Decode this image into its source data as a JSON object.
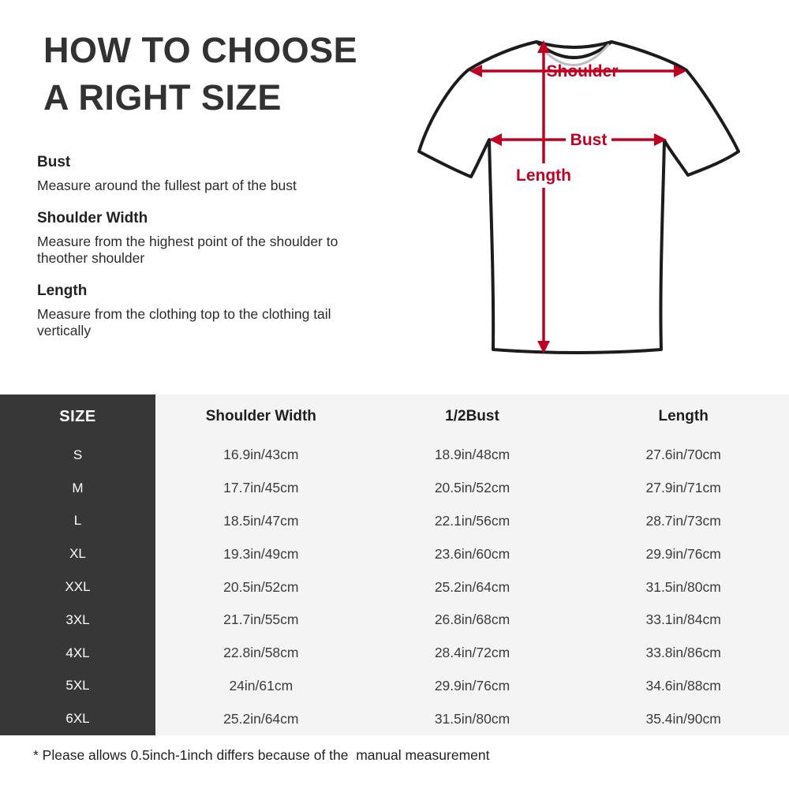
{
  "title": {
    "line1": "HOW TO CHOOSE",
    "line2": "A RIGHT SIZE"
  },
  "instructions": [
    {
      "heading": "Bust",
      "description": "Measure around the fullest part of the bust"
    },
    {
      "heading": "Shoulder Width",
      "description": "Measure from the highest point of the shoulder to theother shoulder"
    },
    {
      "heading": "Length",
      "description": "Measure from the clothing top to the clothing tail vertically"
    }
  ],
  "diagram": {
    "shoulder_label": "Shoulder",
    "bust_label": "Bust",
    "length_label": "Length",
    "arrow_color": "#c00022"
  },
  "table": {
    "headers": {
      "size": "SIZE",
      "shoulder": "Shoulder Width",
      "bust": "1/2Bust",
      "length": "Length"
    },
    "rows": [
      {
        "size": "S",
        "shoulder": "16.9in/43cm",
        "bust": "18.9in/48cm",
        "length": "27.6in/70cm"
      },
      {
        "size": "M",
        "shoulder": "17.7in/45cm",
        "bust": "20.5in/52cm",
        "length": "27.9in/71cm"
      },
      {
        "size": "L",
        "shoulder": "18.5in/47cm",
        "bust": "22.1in/56cm",
        "length": "28.7in/73cm"
      },
      {
        "size": "XL",
        "shoulder": "19.3in/49cm",
        "bust": "23.6in/60cm",
        "length": "29.9in/76cm"
      },
      {
        "size": "XXL",
        "shoulder": "20.5in/52cm",
        "bust": "25.2in/64cm",
        "length": "31.5in/80cm"
      },
      {
        "size": "3XL",
        "shoulder": "21.7in/55cm",
        "bust": "26.8in/68cm",
        "length": "33.1in/84cm"
      },
      {
        "size": "4XL",
        "shoulder": "22.8in/58cm",
        "bust": "28.4in/72cm",
        "length": "33.8in/86cm"
      },
      {
        "size": "5XL",
        "shoulder": "24in/61cm",
        "bust": "29.9in/76cm",
        "length": "34.6in/88cm"
      },
      {
        "size": "6XL",
        "shoulder": "25.2in/64cm",
        "bust": "31.5in/80cm",
        "length": "35.4in/90cm"
      }
    ]
  },
  "footnote": "* Please allows 0.5inch-1inch differs because of the  manual measurement",
  "colors": {
    "accent_red": "#c00022",
    "table_dark": "#373737",
    "table_light": "#f4f4f4",
    "text_dark": "#323232"
  },
  "chart_data": {
    "type": "table",
    "title": "HOW TO CHOOSE A RIGHT SIZE",
    "columns": [
      "SIZE",
      "Shoulder Width",
      "1/2Bust",
      "Length"
    ],
    "rows": [
      [
        "S",
        "16.9in/43cm",
        "18.9in/48cm",
        "27.6in/70cm"
      ],
      [
        "M",
        "17.7in/45cm",
        "20.5in/52cm",
        "27.9in/71cm"
      ],
      [
        "L",
        "18.5in/47cm",
        "22.1in/56cm",
        "28.7in/73cm"
      ],
      [
        "XL",
        "19.3in/49cm",
        "23.6in/60cm",
        "29.9in/76cm"
      ],
      [
        "XXL",
        "20.5in/52cm",
        "25.2in/64cm",
        "31.5in/80cm"
      ],
      [
        "3XL",
        "21.7in/55cm",
        "26.8in/68cm",
        "33.1in/84cm"
      ],
      [
        "4XL",
        "22.8in/58cm",
        "28.4in/72cm",
        "33.8in/86cm"
      ],
      [
        "5XL",
        "24in/61cm",
        "29.9in/76cm",
        "34.6in/88cm"
      ],
      [
        "6XL",
        "25.2in/64cm",
        "31.5in/80cm",
        "35.4in/90cm"
      ]
    ]
  }
}
